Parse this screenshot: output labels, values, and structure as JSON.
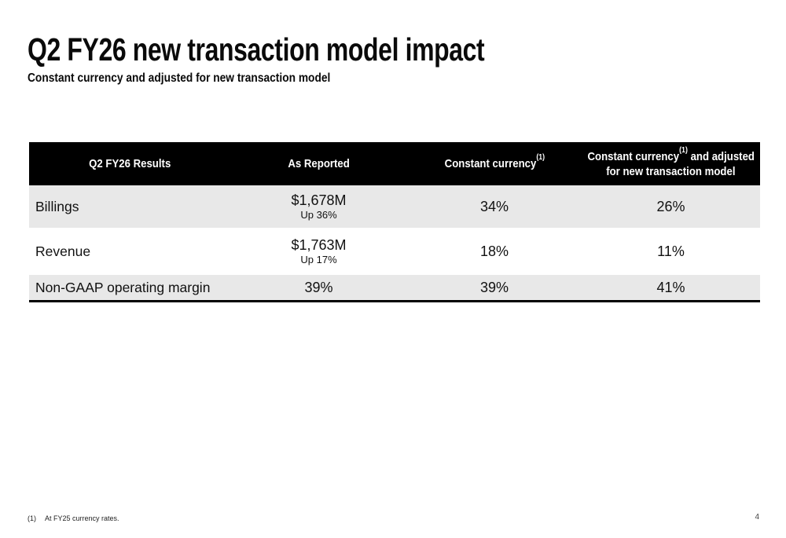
{
  "slide": {
    "title": "Q2 FY26 new transaction model impact",
    "subtitle": "Constant currency and adjusted for new transaction model",
    "page_number": "4",
    "footnote": {
      "marker": "(1)",
      "text": "At FY25 currency rates."
    }
  },
  "table": {
    "columns": [
      {
        "label": "Q2 FY26 Results"
      },
      {
        "label": "As Reported"
      },
      {
        "label": "Constant currency",
        "sup": "(1)"
      },
      {
        "label": "Constant currency",
        "sup": "(1)",
        "label2": "and adjusted",
        "label3": "for new transaction model"
      }
    ],
    "rows": [
      {
        "label": "Billings",
        "as_reported": "$1,678M",
        "as_reported_sub": "Up 36%",
        "constant_currency": "34%",
        "cc_adjusted": "26%"
      },
      {
        "label": "Revenue",
        "as_reported": "$1,763M",
        "as_reported_sub": "Up 17%",
        "constant_currency": "18%",
        "cc_adjusted": "11%"
      },
      {
        "label": "Non-GAAP operating margin",
        "as_reported": "39%",
        "as_reported_sub": "",
        "constant_currency": "39%",
        "cc_adjusted": "41%"
      }
    ]
  },
  "colors": {
    "header_bg": "#000000",
    "header_text": "#ffffff",
    "row_alt_bg": "#e8e8e8",
    "text": "#111111"
  }
}
